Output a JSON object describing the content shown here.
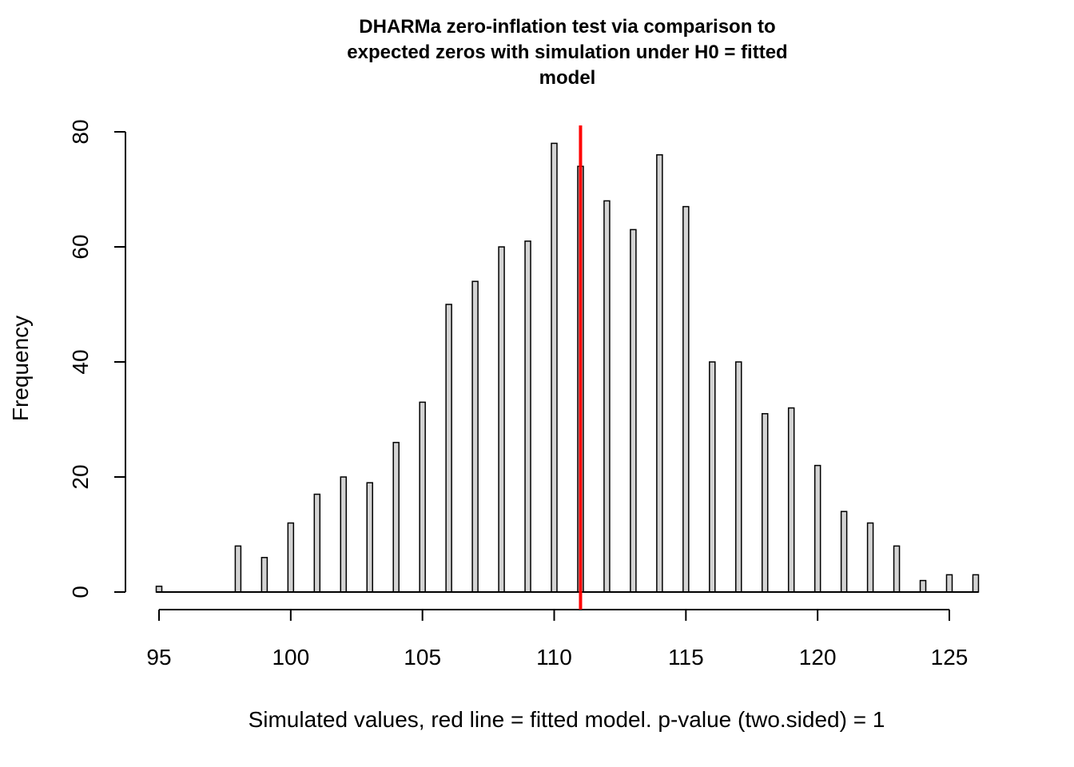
{
  "chart_data": {
    "type": "bar",
    "title_lines": [
      "DHARMa zero-inflation test via comparison to",
      "expected zeros with simulation under H0 = fitted",
      "model"
    ],
    "xlabel": "Simulated values, red line = fitted model. p-value (two.sided) = 1",
    "ylabel": "Frequency",
    "x": [
      95,
      98,
      99,
      100,
      101,
      102,
      103,
      104,
      105,
      106,
      107,
      108,
      109,
      110,
      111,
      112,
      113,
      114,
      115,
      116,
      117,
      118,
      119,
      120,
      121,
      122,
      123,
      124,
      125,
      126
    ],
    "values": [
      1,
      8,
      6,
      12,
      17,
      20,
      19,
      26,
      33,
      50,
      54,
      60,
      61,
      78,
      74,
      68,
      63,
      76,
      67,
      40,
      40,
      31,
      32,
      22,
      14,
      12,
      8,
      2,
      3,
      3
    ],
    "xlim": [
      95,
      126
    ],
    "ylim": [
      0,
      80
    ],
    "x_ticks": [
      "95",
      "100",
      "105",
      "110",
      "115",
      "120",
      "125"
    ],
    "y_ticks": [
      "0",
      "20",
      "40",
      "60",
      "80"
    ],
    "reference_line": {
      "x": 111,
      "color": "#ff0000"
    },
    "bar_fill": "#d3d3d3",
    "bar_stroke": "#000000",
    "grid": false,
    "legend": "none"
  }
}
